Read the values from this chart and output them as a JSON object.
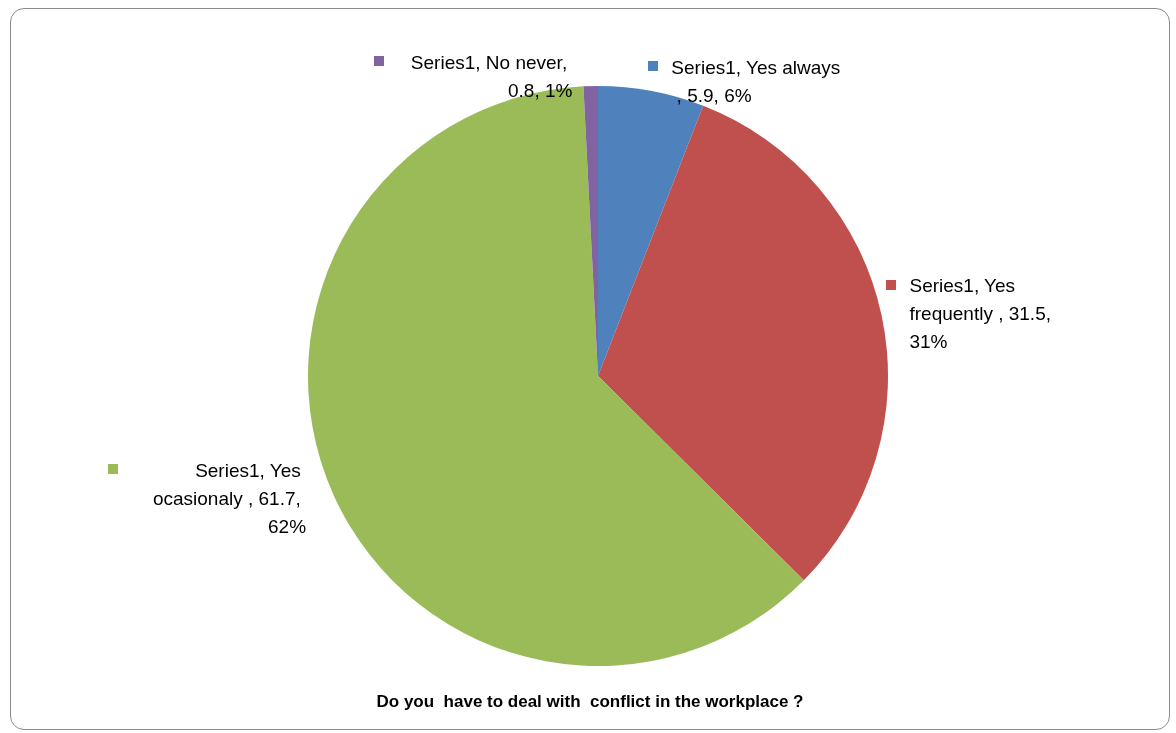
{
  "chart_data": {
    "type": "pie",
    "title": "Do you  have to deal with  conflict in the workplace ?",
    "categories": [
      "Series1, Yes always , 5.9, 6%",
      "Series1, Yes frequently , 31.5, 31%",
      "Series1, Yes ocasionaly , 61.7, 62%",
      "Series1, No never, 0.8, 1%"
    ],
    "values": [
      5.9,
      31.5,
      61.7,
      0.8
    ],
    "colors": [
      "#4f81bd",
      "#c0504d",
      "#9bbb59",
      "#8064a2"
    ],
    "legend": "top"
  }
}
